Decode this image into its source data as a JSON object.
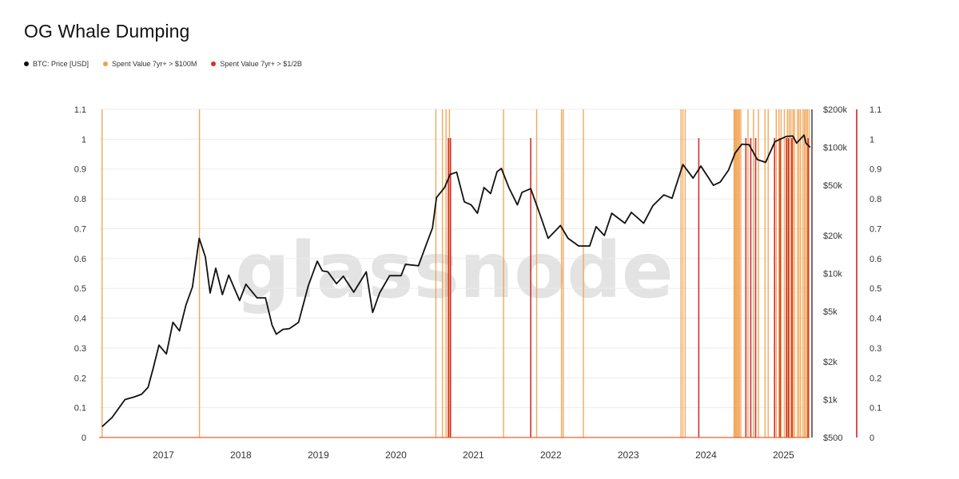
{
  "title": "OG Whale Dumping",
  "watermark": "glassnode",
  "legend": [
    {
      "label": "BTC: Price [USD]",
      "color": "#111111"
    },
    {
      "label": "Spent Value 7yr+ > $100M",
      "color": "#f0a04b"
    },
    {
      "label": "Spent Value 7yr+ > $1/2B",
      "color": "#d32f2f"
    }
  ],
  "chart_data": {
    "type": "line",
    "title": "OG Whale Dumping",
    "x_range": [
      "2016-09",
      "2025-11"
    ],
    "x_ticks": [
      "2017",
      "2018",
      "2019",
      "2020",
      "2021",
      "2022",
      "2023",
      "2024",
      "2025"
    ],
    "left_axis": {
      "ylim": [
        0,
        1.1
      ],
      "ticks": [
        "0",
        "0.1",
        "0.2",
        "0.3",
        "0.4",
        "0.5",
        "0.6",
        "0.7",
        "0.8",
        "0.9",
        "1",
        "1.1"
      ]
    },
    "right_axis_price": {
      "scale": "log",
      "ylim": [
        500,
        200000
      ],
      "ticks": [
        "$500",
        "$1k",
        "$2k",
        "$5k",
        "$10k",
        "$20k",
        "$50k",
        "$100k",
        "$200k"
      ]
    },
    "right_axis_signal": {
      "ylim": [
        0,
        1.1
      ],
      "ticks": [
        "0",
        "0.1",
        "0.2",
        "0.3",
        "0.4",
        "0.5",
        "0.6",
        "0.7",
        "0.8",
        "0.9",
        "1",
        "1.1"
      ]
    },
    "grid": true,
    "legend_position": "top-left",
    "series": [
      {
        "name": "BTC: Price [USD]",
        "color": "#111111",
        "points": [
          [
            "2016-09-15",
            610
          ],
          [
            "2016-11-01",
            720
          ],
          [
            "2017-01-01",
            1000
          ],
          [
            "2017-02-15",
            1050
          ],
          [
            "2017-03-20",
            1100
          ],
          [
            "2017-04-20",
            1250
          ],
          [
            "2017-05-15",
            1800
          ],
          [
            "2017-06-10",
            2700
          ],
          [
            "2017-07-15",
            2300
          ],
          [
            "2017-08-15",
            4100
          ],
          [
            "2017-09-15",
            3500
          ],
          [
            "2017-10-15",
            5600
          ],
          [
            "2017-11-15",
            7800
          ],
          [
            "2017-12-17",
            19000
          ],
          [
            "2018-01-15",
            13500
          ],
          [
            "2018-02-06",
            7000
          ],
          [
            "2018-03-05",
            11000
          ],
          [
            "2018-04-05",
            6800
          ],
          [
            "2018-05-05",
            9700
          ],
          [
            "2018-06-25",
            6100
          ],
          [
            "2018-07-25",
            8200
          ],
          [
            "2018-09-15",
            6400
          ],
          [
            "2018-10-25",
            6400
          ],
          [
            "2018-11-25",
            3900
          ],
          [
            "2018-12-15",
            3300
          ],
          [
            "2019-01-15",
            3600
          ],
          [
            "2019-02-15",
            3650
          ],
          [
            "2019-03-30",
            4100
          ],
          [
            "2019-05-15",
            8000
          ],
          [
            "2019-06-26",
            12500
          ],
          [
            "2019-07-20",
            10500
          ],
          [
            "2019-08-15",
            10300
          ],
          [
            "2019-09-25",
            8300
          ],
          [
            "2019-10-27",
            9500
          ],
          [
            "2019-12-15",
            7100
          ],
          [
            "2020-02-12",
            10300
          ],
          [
            "2020-03-13",
            4900
          ],
          [
            "2020-04-15",
            7000
          ],
          [
            "2020-06-01",
            9600
          ],
          [
            "2020-07-25",
            9600
          ],
          [
            "2020-08-15",
            11800
          ],
          [
            "2020-10-15",
            11500
          ],
          [
            "2020-11-15",
            16000
          ],
          [
            "2020-12-20",
            23000
          ],
          [
            "2021-01-08",
            40000
          ],
          [
            "2021-02-15",
            48000
          ],
          [
            "2021-03-13",
            61000
          ],
          [
            "2021-04-13",
            63500
          ],
          [
            "2021-05-19",
            37000
          ],
          [
            "2021-06-20",
            35000
          ],
          [
            "2021-07-20",
            30000
          ],
          [
            "2021-08-20",
            48000
          ],
          [
            "2021-09-20",
            43000
          ],
          [
            "2021-10-20",
            64000
          ],
          [
            "2021-11-10",
            68000
          ],
          [
            "2021-12-15",
            48000
          ],
          [
            "2022-01-24",
            35000
          ],
          [
            "2022-02-15",
            44000
          ],
          [
            "2022-03-28",
            47000
          ],
          [
            "2022-05-12",
            29000
          ],
          [
            "2022-06-18",
            19000
          ],
          [
            "2022-07-25",
            22000
          ],
          [
            "2022-08-15",
            24000
          ],
          [
            "2022-09-20",
            19000
          ],
          [
            "2022-11-09",
            16500
          ],
          [
            "2022-12-31",
            16500
          ],
          [
            "2023-01-30",
            23500
          ],
          [
            "2023-03-10",
            20000
          ],
          [
            "2023-04-14",
            30000
          ],
          [
            "2023-06-15",
            25000
          ],
          [
            "2023-07-15",
            30500
          ],
          [
            "2023-09-11",
            25000
          ],
          [
            "2023-10-25",
            34500
          ],
          [
            "2023-12-15",
            42000
          ],
          [
            "2024-01-23",
            39500
          ],
          [
            "2024-03-14",
            73000
          ],
          [
            "2024-05-01",
            57000
          ],
          [
            "2024-06-07",
            71000
          ],
          [
            "2024-08-05",
            50000
          ],
          [
            "2024-09-06",
            53000
          ],
          [
            "2024-10-15",
            66000
          ],
          [
            "2024-11-15",
            90000
          ],
          [
            "2024-12-17",
            106000
          ],
          [
            "2025-01-20",
            105000
          ],
          [
            "2025-02-28",
            80000
          ],
          [
            "2025-04-08",
            76000
          ],
          [
            "2025-05-22",
            111000
          ],
          [
            "2025-07-14",
            122000
          ],
          [
            "2025-08-14",
            123000
          ],
          [
            "2025-09-01",
            108000
          ],
          [
            "2025-10-06",
            125000
          ],
          [
            "2025-10-15",
            108000
          ],
          [
            "2025-11-04",
            100000
          ]
        ]
      },
      {
        "name": "Spent Value 7yr+ > $100M",
        "color": "#f0a04b",
        "events": [
          "2016-09-15",
          "2017-12-18",
          "2021-01-05",
          "2021-02-05",
          "2021-02-22",
          "2021-03-10",
          "2021-11-20",
          "2022-04-25",
          "2022-08-20",
          "2022-08-28",
          "2022-12-01",
          "2024-03-05",
          "2024-03-14",
          "2024-03-25",
          "2024-11-10",
          "2024-11-15",
          "2024-11-20",
          "2024-11-25",
          "2024-12-01",
          "2024-12-05",
          "2024-12-12",
          "2025-01-15",
          "2025-02-10",
          "2025-03-05",
          "2025-04-05",
          "2025-04-20",
          "2025-05-28",
          "2025-06-10",
          "2025-06-20",
          "2025-07-05",
          "2025-07-20",
          "2025-07-28",
          "2025-08-05",
          "2025-08-15",
          "2025-08-22",
          "2025-09-05",
          "2025-09-12",
          "2025-09-20",
          "2025-10-01",
          "2025-10-08",
          "2025-10-15",
          "2025-10-22",
          "2025-10-30"
        ]
      },
      {
        "name": "Spent Value 7yr+ > $1/2B",
        "color": "#d32f2f",
        "events": [
          "2021-03-05",
          "2021-03-15",
          "2022-03-28",
          "2024-05-28",
          "2025-01-05",
          "2025-01-28",
          "2025-02-20",
          "2025-05-20",
          "2025-06-15",
          "2025-07-15",
          "2025-07-25",
          "2025-08-10",
          "2025-10-25"
        ]
      }
    ]
  }
}
